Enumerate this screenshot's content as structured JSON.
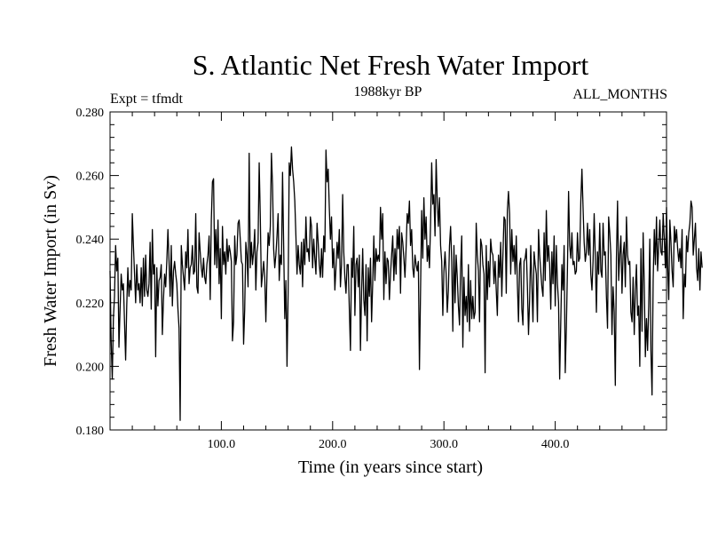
{
  "chart_data": {
    "type": "line",
    "title": "S. Atlantic Net Fresh Water Import",
    "subtitle": "1988kyr BP",
    "annotation_left": "Expt = tfmdt",
    "annotation_right": "ALL_MONTHS",
    "xlabel": "Time (in years since start)",
    "ylabel": "Fresh Water Import (in Sv)",
    "xlim": [
      0,
      500
    ],
    "ylim": [
      0.18,
      0.28
    ],
    "x_ticks": [
      100,
      200,
      300,
      400
    ],
    "x_tick_labels": [
      "100.0",
      "200.0",
      "300.0",
      "400.0"
    ],
    "y_ticks": [
      0.18,
      0.2,
      0.22,
      0.24,
      0.26,
      0.28
    ],
    "y_tick_labels": [
      "0.180",
      "0.200",
      "0.220",
      "0.240",
      "0.260",
      "0.280"
    ],
    "grid": false,
    "series": [
      {
        "name": "fresh_water_import",
        "x_start": 0,
        "x_step": 1,
        "values": [
          0.23,
          0.208,
          0.196,
          0.215,
          0.222,
          0.238,
          0.23,
          0.234,
          0.206,
          0.218,
          0.229,
          0.224,
          0.226,
          0.214,
          0.202,
          0.219,
          0.231,
          0.222,
          0.227,
          0.224,
          0.248,
          0.238,
          0.229,
          0.22,
          0.232,
          0.224,
          0.226,
          0.22,
          0.231,
          0.219,
          0.234,
          0.222,
          0.235,
          0.224,
          0.222,
          0.226,
          0.239,
          0.218,
          0.243,
          0.229,
          0.232,
          0.203,
          0.231,
          0.219,
          0.227,
          0.228,
          0.232,
          0.21,
          0.221,
          0.229,
          0.225,
          0.233,
          0.243,
          0.233,
          0.222,
          0.238,
          0.219,
          0.23,
          0.233,
          0.229,
          0.226,
          0.218,
          0.212,
          0.183,
          0.238,
          0.232,
          0.228,
          0.224,
          0.236,
          0.231,
          0.243,
          0.226,
          0.231,
          0.232,
          0.238,
          0.229,
          0.23,
          0.248,
          0.225,
          0.223,
          0.242,
          0.236,
          0.231,
          0.228,
          0.234,
          0.228,
          0.226,
          0.232,
          0.235,
          0.241,
          0.221,
          0.246,
          0.258,
          0.259,
          0.232,
          0.243,
          0.231,
          0.246,
          0.226,
          0.237,
          0.215,
          0.244,
          0.232,
          0.236,
          0.229,
          0.24,
          0.233,
          0.238,
          0.236,
          0.233,
          0.208,
          0.214,
          0.241,
          0.232,
          0.235,
          0.245,
          0.246,
          0.24,
          0.233,
          0.232,
          0.207,
          0.218,
          0.239,
          0.235,
          0.225,
          0.267,
          0.231,
          0.239,
          0.232,
          0.236,
          0.243,
          0.224,
          0.236,
          0.239,
          0.264,
          0.247,
          0.225,
          0.229,
          0.233,
          0.228,
          0.214,
          0.229,
          0.242,
          0.238,
          0.244,
          0.267,
          0.257,
          0.237,
          0.231,
          0.235,
          0.241,
          0.248,
          0.227,
          0.235,
          0.232,
          0.261,
          0.238,
          0.215,
          0.227,
          0.2,
          0.223,
          0.264,
          0.26,
          0.269,
          0.262,
          0.258,
          0.252,
          0.241,
          0.229,
          0.238,
          0.232,
          0.229,
          0.239,
          0.225,
          0.24,
          0.232,
          0.247,
          0.236,
          0.237,
          0.233,
          0.247,
          0.244,
          0.231,
          0.24,
          0.234,
          0.229,
          0.245,
          0.239,
          0.232,
          0.228,
          0.237,
          0.228,
          0.241,
          0.236,
          0.268,
          0.258,
          0.262,
          0.25,
          0.24,
          0.247,
          0.231,
          0.237,
          0.224,
          0.231,
          0.239,
          0.234,
          0.243,
          0.225,
          0.232,
          0.254,
          0.236,
          0.228,
          0.223,
          0.232,
          0.232,
          0.218,
          0.205,
          0.234,
          0.228,
          0.244,
          0.216,
          0.232,
          0.234,
          0.225,
          0.235,
          0.205,
          0.223,
          0.237,
          0.221,
          0.216,
          0.232,
          0.208,
          0.231,
          0.222,
          0.234,
          0.214,
          0.226,
          0.241,
          0.227,
          0.237,
          0.233,
          0.235,
          0.233,
          0.25,
          0.24,
          0.248,
          0.221,
          0.236,
          0.226,
          0.234,
          0.233,
          0.221,
          0.229,
          0.235,
          0.241,
          0.227,
          0.237,
          0.229,
          0.243,
          0.237,
          0.244,
          0.223,
          0.242,
          0.239,
          0.234,
          0.228,
          0.237,
          0.248,
          0.245,
          0.252,
          0.238,
          0.243,
          0.231,
          0.228,
          0.235,
          0.232,
          0.23,
          0.233,
          0.199,
          0.224,
          0.249,
          0.234,
          0.253,
          0.24,
          0.247,
          0.233,
          0.238,
          0.231,
          0.245,
          0.264,
          0.251,
          0.254,
          0.241,
          0.265,
          0.252,
          0.244,
          0.253,
          0.238,
          0.233,
          0.216,
          0.23,
          0.236,
          0.229,
          0.217,
          0.224,
          0.238,
          0.244,
          0.233,
          0.211,
          0.238,
          0.22,
          0.235,
          0.228,
          0.219,
          0.213,
          0.231,
          0.241,
          0.206,
          0.228,
          0.216,
          0.222,
          0.214,
          0.232,
          0.211,
          0.227,
          0.215,
          0.222,
          0.215,
          0.217,
          0.245,
          0.235,
          0.23,
          0.214,
          0.24,
          0.238,
          0.232,
          0.229,
          0.198,
          0.238,
          0.221,
          0.233,
          0.225,
          0.24,
          0.236,
          0.235,
          0.226,
          0.233,
          0.224,
          0.216,
          0.235,
          0.228,
          0.239,
          0.222,
          0.235,
          0.247,
          0.246,
          0.223,
          0.249,
          0.255,
          0.248,
          0.229,
          0.243,
          0.233,
          0.238,
          0.229,
          0.241,
          0.226,
          0.214,
          0.232,
          0.234,
          0.218,
          0.213,
          0.233,
          0.234,
          0.237,
          0.225,
          0.21,
          0.221,
          0.238,
          0.226,
          0.214,
          0.236,
          0.232,
          0.229,
          0.214,
          0.243,
          0.235,
          0.23,
          0.225,
          0.222,
          0.242,
          0.227,
          0.249,
          0.233,
          0.238,
          0.232,
          0.218,
          0.236,
          0.226,
          0.241,
          0.219,
          0.238,
          0.226,
          0.22,
          0.196,
          0.214,
          0.232,
          0.224,
          0.238,
          0.198,
          0.212,
          0.231,
          0.255,
          0.238,
          0.234,
          0.242,
          0.232,
          0.233,
          0.229,
          0.23,
          0.242,
          0.233,
          0.234,
          0.252,
          0.262,
          0.25,
          0.239,
          0.233,
          0.236,
          0.245,
          0.235,
          0.243,
          0.229,
          0.224,
          0.233,
          0.248,
          0.235,
          0.217,
          0.236,
          0.229,
          0.245,
          0.23,
          0.228,
          0.245,
          0.235,
          0.236,
          0.222,
          0.212,
          0.247,
          0.242,
          0.235,
          0.21,
          0.225,
          0.217,
          0.194,
          0.234,
          0.252,
          0.227,
          0.235,
          0.241,
          0.223,
          0.235,
          0.239,
          0.225,
          0.247,
          0.235,
          0.232,
          0.233,
          0.217,
          0.214,
          0.228,
          0.21,
          0.224,
          0.232,
          0.216,
          0.219,
          0.2,
          0.237,
          0.211,
          0.242,
          0.226,
          0.203,
          0.215,
          0.205,
          0.219,
          0.24,
          0.205,
          0.191,
          0.227,
          0.243,
          0.232,
          0.247,
          0.23,
          0.238,
          0.246,
          0.236,
          0.235,
          0.248,
          0.24,
          0.231,
          0.25,
          0.232,
          0.221,
          0.246,
          0.239,
          0.23,
          0.225,
          0.244,
          0.239,
          0.243,
          0.237,
          0.233,
          0.237,
          0.231,
          0.243,
          0.215,
          0.229,
          0.225,
          0.241,
          0.236,
          0.242,
          0.245,
          0.252,
          0.25,
          0.235,
          0.24,
          0.245,
          0.231,
          0.227,
          0.237,
          0.224,
          0.236,
          0.231
        ]
      }
    ]
  }
}
